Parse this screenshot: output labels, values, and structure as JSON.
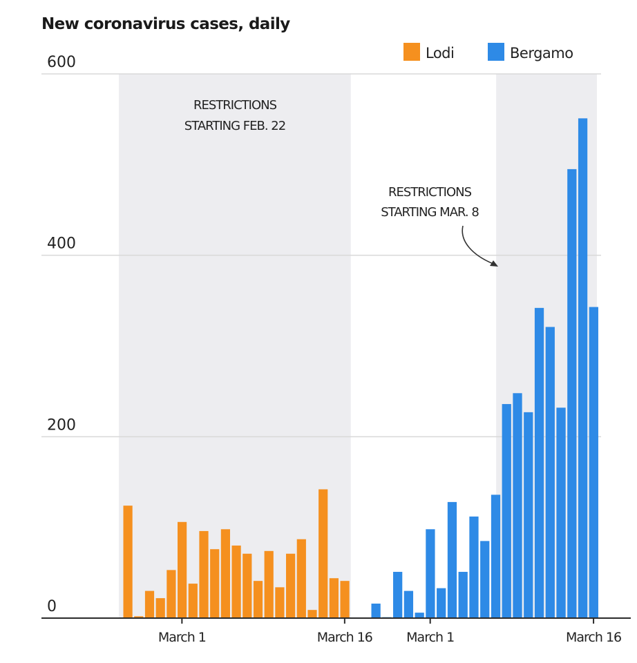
{
  "chart_data": {
    "type": "bar",
    "title": "New coronavirus cases, daily",
    "xlabel": "",
    "ylabel": "",
    "ylim": [
      0,
      600
    ],
    "yticks": [
      0,
      200,
      400,
      600
    ],
    "grid": true,
    "legend": {
      "placement": "top-right",
      "entries": [
        {
          "name": "Lodi",
          "color": "#f5901f"
        },
        {
          "name": "Bergamo",
          "color": "#2e8ae6"
        }
      ]
    },
    "panels": [
      {
        "name": "Lodi",
        "color": "#f5901f",
        "dates": [
          "Feb 25",
          "Feb 26",
          "Feb 27",
          "Feb 28",
          "Feb 29",
          "Mar 1",
          "Mar 2",
          "Mar 3",
          "Mar 4",
          "Mar 5",
          "Mar 6",
          "Mar 7",
          "Mar 8",
          "Mar 9",
          "Mar 10",
          "Mar 11",
          "Mar 12",
          "Mar 13",
          "Mar 14",
          "Mar 15",
          "Mar 16"
        ],
        "values": [
          124,
          2,
          30,
          22,
          53,
          106,
          38,
          96,
          76,
          98,
          80,
          71,
          41,
          74,
          34,
          71,
          87,
          9,
          142,
          44,
          41
        ],
        "tick_labels": [
          {
            "label": "March 1",
            "index": 5
          },
          {
            "label": "March 16",
            "index": 20
          }
        ],
        "shaded_from_index": 0,
        "shaded_to_index": 20,
        "annotation": {
          "line1": "RESTRICTIONS",
          "line2": "STARTING FEB. 22"
        }
      },
      {
        "name": "Bergamo",
        "color": "#2e8ae6",
        "dates": [
          "Feb 25",
          "Feb 26",
          "Feb 27",
          "Feb 28",
          "Feb 29",
          "Mar 1",
          "Mar 2",
          "Mar 3",
          "Mar 4",
          "Mar 5",
          "Mar 6",
          "Mar 7",
          "Mar 8",
          "Mar 9",
          "Mar 10",
          "Mar 11",
          "Mar 12",
          "Mar 13",
          "Mar 14",
          "Mar 15",
          "Mar 16"
        ],
        "values": [
          16,
          1,
          51,
          30,
          6,
          98,
          33,
          128,
          51,
          112,
          85,
          136,
          236,
          248,
          227,
          342,
          321,
          232,
          495,
          551,
          343
        ],
        "tick_labels": [
          {
            "label": "March 1",
            "index": 5
          },
          {
            "label": "March 16",
            "index": 20
          }
        ],
        "shaded_from_index": 12,
        "shaded_to_index": 20,
        "annotation": {
          "line1": "RESTRICTIONS",
          "line2": "STARTING MAR. 8"
        }
      }
    ]
  }
}
